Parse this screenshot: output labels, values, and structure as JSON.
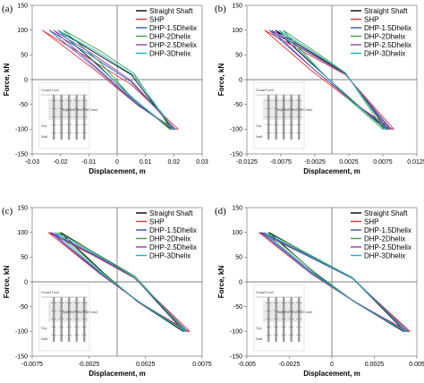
{
  "chart_data": [
    {
      "type": "line",
      "panel_label": "(a)",
      "xlabel": "Displacement, m",
      "ylabel": "Force, kN",
      "xlim": [
        -0.03,
        0.03
      ],
      "ylim": [
        -150,
        150
      ],
      "xticks": [
        "-0.03",
        "-0.02",
        "-0.01",
        "0",
        "0.01",
        "0.02",
        "0.03"
      ],
      "yticks": [
        "150",
        "100",
        "50",
        "0",
        "-50",
        "-100",
        "-150"
      ],
      "legend_position": "top-right",
      "series": [
        {
          "name": "Straight Shaft",
          "color": "#000000",
          "x": [
            -0.021,
            -0.008,
            0.005,
            0.0195,
            0.019,
            0.006,
            -0.007,
            -0.021
          ],
          "y": [
            100,
            55,
            10,
            -100,
            -100,
            -40,
            30,
            100
          ]
        },
        {
          "name": "SHP",
          "color": "#e83030",
          "x": [
            -0.0265,
            -0.012,
            0.005,
            0.0215,
            0.0205,
            0.008,
            -0.008,
            -0.0265
          ],
          "y": [
            100,
            50,
            -10,
            -100,
            -100,
            -55,
            20,
            100
          ]
        },
        {
          "name": "DHP-1.5Dhelix",
          "color": "#2c58b8",
          "x": [
            -0.024,
            -0.01,
            0.005,
            0.0205,
            0.0195,
            0.007,
            -0.008,
            -0.024
          ],
          "y": [
            100,
            52,
            -5,
            -100,
            -100,
            -50,
            25,
            100
          ]
        },
        {
          "name": "DHP-2Dhelix",
          "color": "#43a047",
          "x": [
            -0.019,
            -0.006,
            0.006,
            0.019,
            0.0185,
            0.005,
            -0.006,
            -0.019
          ],
          "y": [
            100,
            58,
            12,
            -100,
            -100,
            -35,
            35,
            100
          ]
        },
        {
          "name": "DHP-2.5Dhelix",
          "color": "#8e44ad",
          "x": [
            -0.0225,
            -0.009,
            0.005,
            0.0205,
            0.0195,
            0.007,
            -0.008,
            -0.0225
          ],
          "y": [
            100,
            53,
            -2,
            -100,
            -100,
            -48,
            28,
            100
          ]
        },
        {
          "name": "DHP-3Dhelix",
          "color": "#17b3c2",
          "x": [
            -0.021,
            -0.007,
            0.006,
            0.02,
            0.0195,
            0.006,
            -0.007,
            -0.021
          ],
          "y": [
            100,
            56,
            8,
            -100,
            -100,
            -42,
            32,
            100
          ]
        }
      ]
    },
    {
      "type": "line",
      "panel_label": "(b)",
      "xlabel": "Displacement, m",
      "ylabel": "Force, kN",
      "xlim": [
        -0.0125,
        0.0125
      ],
      "ylim": [
        -150,
        150
      ],
      "xticks": [
        "-0.0125",
        "-0.0075",
        "-0.0025",
        "0.0025",
        "0.0075",
        "0.0125"
      ],
      "yticks": [
        "150",
        "100",
        "50",
        "0",
        "-50",
        "-100",
        "-150"
      ],
      "legend_position": "top-right",
      "series": [
        {
          "name": "Straight Shaft",
          "color": "#000000",
          "x": [
            -0.0083,
            -0.003,
            0.002,
            0.0082,
            0.008,
            0.003,
            -0.002,
            -0.0083
          ],
          "y": [
            100,
            55,
            12,
            -100,
            -100,
            -42,
            20,
            100
          ]
        },
        {
          "name": "SHP",
          "color": "#e83030",
          "x": [
            -0.0099,
            -0.004,
            0.002,
            0.0091,
            0.0089,
            0.003,
            -0.003,
            -0.0099
          ],
          "y": [
            100,
            55,
            10,
            -100,
            -100,
            -45,
            18,
            100
          ]
        },
        {
          "name": "DHP-1.5Dhelix",
          "color": "#2c58b8",
          "x": [
            -0.0092,
            -0.0035,
            0.002,
            0.0087,
            0.0085,
            0.003,
            -0.0025,
            -0.0092
          ],
          "y": [
            100,
            55,
            11,
            -100,
            -100,
            -44,
            19,
            100
          ]
        },
        {
          "name": "DHP-2Dhelix",
          "color": "#43a047",
          "x": [
            -0.0072,
            -0.0025,
            0.002,
            0.0076,
            0.0075,
            0.0025,
            -0.002,
            -0.0072
          ],
          "y": [
            100,
            57,
            14,
            -100,
            -100,
            -40,
            22,
            100
          ]
        },
        {
          "name": "DHP-2.5Dhelix",
          "color": "#8e44ad",
          "x": [
            -0.0088,
            -0.0033,
            0.002,
            0.0085,
            0.0083,
            0.003,
            -0.0025,
            -0.0088
          ],
          "y": [
            100,
            55,
            11,
            -100,
            -100,
            -43,
            19,
            100
          ]
        },
        {
          "name": "DHP-3Dhelix",
          "color": "#17b3c2",
          "x": [
            -0.0078,
            -0.0028,
            0.002,
            0.008,
            0.0078,
            0.0028,
            -0.002,
            -0.0078
          ],
          "y": [
            100,
            56,
            13,
            -100,
            -100,
            -41,
            21,
            100
          ]
        }
      ]
    },
    {
      "type": "line",
      "panel_label": "(c)",
      "xlabel": "Displacement, m",
      "ylabel": "Force, kN",
      "xlim": [
        -0.0075,
        0.0075
      ],
      "ylim": [
        -150,
        150
      ],
      "xticks": [
        "-0.0075",
        "-0.0025",
        "0.0025",
        "0.0075"
      ],
      "yticks": [
        "150",
        "100",
        "50",
        "0",
        "-50",
        "-100",
        "-150"
      ],
      "legend_position": "top-right",
      "series": [
        {
          "name": "Straight Shaft",
          "color": "#000000",
          "x": [
            -0.005,
            -0.0015,
            0.0015,
            0.0059,
            0.0058,
            0.0018,
            -0.0012,
            -0.005
          ],
          "y": [
            100,
            52,
            10,
            -100,
            -100,
            -40,
            18,
            100
          ]
        },
        {
          "name": "SHP",
          "color": "#e83030",
          "x": [
            -0.0061,
            -0.002,
            0.0015,
            0.0064,
            0.0063,
            0.002,
            -0.0015,
            -0.0061
          ],
          "y": [
            100,
            52,
            8,
            -100,
            -100,
            -42,
            16,
            100
          ]
        },
        {
          "name": "DHP-1.5Dhelix",
          "color": "#2c58b8",
          "x": [
            -0.0059,
            -0.0019,
            0.0015,
            0.0062,
            0.0061,
            0.002,
            -0.0015,
            -0.0059
          ],
          "y": [
            100,
            52,
            9,
            -100,
            -100,
            -41,
            17,
            100
          ]
        },
        {
          "name": "DHP-2Dhelix",
          "color": "#43a047",
          "x": [
            -0.0052,
            -0.0016,
            0.0016,
            0.006,
            0.0059,
            0.0018,
            -0.0013,
            -0.0052
          ],
          "y": [
            100,
            54,
            11,
            -100,
            -100,
            -39,
            19,
            100
          ]
        },
        {
          "name": "DHP-2.5Dhelix",
          "color": "#8e44ad",
          "x": [
            -0.0058,
            -0.0018,
            0.0015,
            0.0062,
            0.0061,
            0.0019,
            -0.0014,
            -0.0058
          ],
          "y": [
            100,
            52,
            9,
            -100,
            -100,
            -41,
            17,
            100
          ]
        },
        {
          "name": "DHP-3Dhelix",
          "color": "#17b3c2",
          "x": [
            -0.0055,
            -0.0017,
            0.0015,
            0.0061,
            0.006,
            0.0019,
            -0.0014,
            -0.0055
          ],
          "y": [
            100,
            53,
            10,
            -100,
            -100,
            -40,
            18,
            100
          ]
        }
      ]
    },
    {
      "type": "line",
      "panel_label": "(d)",
      "xlabel": "Displacement, m",
      "ylabel": "Force, kN",
      "xlim": [
        -0.005,
        0.005
      ],
      "ylim": [
        -150,
        150
      ],
      "xticks": [
        "-0.005",
        "-0.0025",
        "0",
        "0.0025",
        "0.005"
      ],
      "yticks": [
        "150",
        "100",
        "50",
        "0",
        "-50",
        "-100",
        "-150"
      ],
      "legend_position": "top-right",
      "series": [
        {
          "name": "Straight Shaft",
          "color": "#000000",
          "x": [
            -0.0037,
            -0.0012,
            0.0012,
            0.0043,
            0.0042,
            0.0013,
            -0.001,
            -0.0037
          ],
          "y": [
            100,
            52,
            8,
            -100,
            -100,
            -40,
            18,
            100
          ]
        },
        {
          "name": "SHP",
          "color": "#e83030",
          "x": [
            -0.0043,
            -0.0014,
            0.0012,
            0.0046,
            0.0045,
            0.0014,
            -0.0012,
            -0.0043
          ],
          "y": [
            100,
            52,
            7,
            -100,
            -100,
            -42,
            16,
            100
          ]
        },
        {
          "name": "DHP-1.5Dhelix",
          "color": "#2c58b8",
          "x": [
            -0.0042,
            -0.0014,
            0.0012,
            0.0045,
            0.0044,
            0.0014,
            -0.0012,
            -0.0042
          ],
          "y": [
            100,
            52,
            7,
            -100,
            -100,
            -41,
            17,
            100
          ]
        },
        {
          "name": "DHP-2Dhelix",
          "color": "#43a047",
          "x": [
            -0.0038,
            -0.0012,
            0.0012,
            0.0044,
            0.0043,
            0.0013,
            -0.001,
            -0.0038
          ],
          "y": [
            100,
            53,
            9,
            -100,
            -100,
            -39,
            19,
            100
          ]
        },
        {
          "name": "DHP-2.5Dhelix",
          "color": "#8e44ad",
          "x": [
            -0.0041,
            -0.0013,
            0.0012,
            0.0045,
            0.0044,
            0.0014,
            -0.0011,
            -0.0041
          ],
          "y": [
            100,
            52,
            8,
            -100,
            -100,
            -41,
            17,
            100
          ]
        },
        {
          "name": "DHP-3Dhelix",
          "color": "#17b3c2",
          "x": [
            -0.004,
            -0.0013,
            0.0012,
            0.0044,
            0.0043,
            0.0013,
            -0.0011,
            -0.004
          ],
          "y": [
            100,
            53,
            8,
            -100,
            -100,
            -40,
            18,
            100
          ]
        }
      ]
    }
  ],
  "inset": {
    "ground_label": "Ground Level",
    "zone_label": "Improved Area (Soil Lime)",
    "clay_label": "Clay",
    "sand_label": "Sand"
  }
}
